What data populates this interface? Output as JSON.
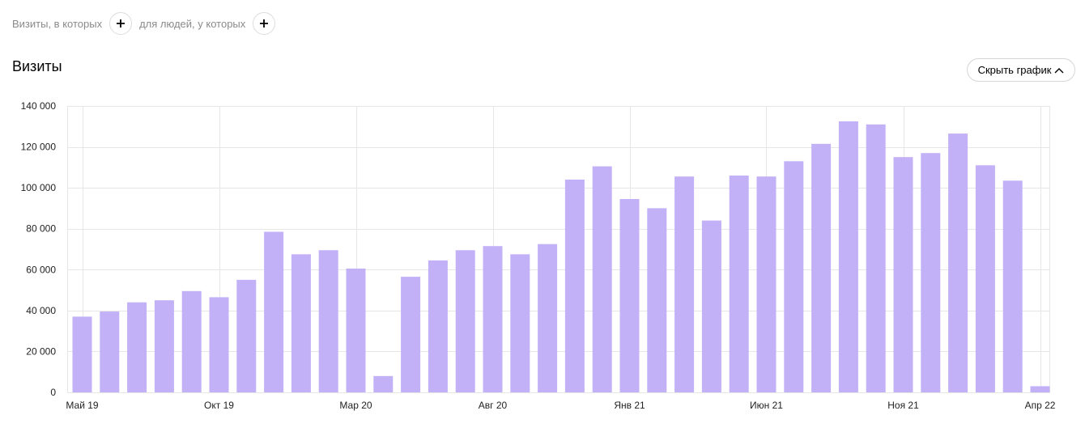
{
  "filters": {
    "visits_where_label": "Визиты, в которых",
    "people_where_label": "для людей, у которых"
  },
  "page_title": "Визиты",
  "toggle_label": "Скрыть график",
  "bar_color": "#c3b1f8",
  "chart_data": {
    "type": "bar",
    "series": [
      {
        "values": [
          37000,
          39500,
          44000,
          45000,
          49500,
          46500,
          55000,
          78500,
          67500,
          69500,
          60500,
          8000,
          56500,
          64500,
          69500,
          71500,
          67500,
          72500,
          104000,
          110500,
          94500,
          90000,
          105500,
          84000,
          106000,
          105500,
          113000,
          121500,
          132500,
          131000,
          115000,
          117000,
          126500,
          111000,
          103500,
          3000
        ]
      }
    ],
    "x_tick_labels": [
      "Май 19",
      "Окт 19",
      "Мар 20",
      "Авг 20",
      "Янв 21",
      "Июн 21",
      "Ноя 21",
      "Апр 22"
    ],
    "x_tick_bar_index": [
      0,
      5,
      10,
      15,
      20,
      25,
      30,
      35
    ],
    "y_ticks": [
      0,
      20000,
      40000,
      60000,
      80000,
      100000,
      120000,
      140000
    ],
    "y_tick_labels": [
      "0",
      "20 000",
      "40 000",
      "60 000",
      "80 000",
      "100 000",
      "120 000",
      "140 000"
    ],
    "ylim": [
      0,
      140000
    ],
    "grid": true,
    "legend": "none"
  }
}
